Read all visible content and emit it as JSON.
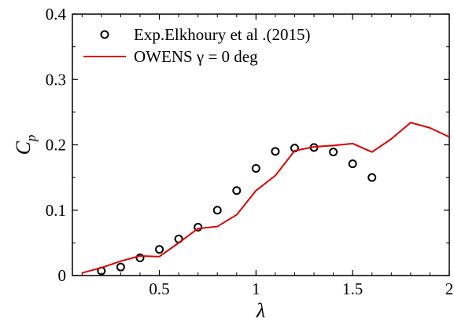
{
  "chart_data": {
    "type": "scatter",
    "xlabel": "λ",
    "ylabel": {
      "main": "C",
      "sub": "p"
    },
    "xlim": [
      0.05,
      2.0
    ],
    "ylim": [
      0,
      0.4
    ],
    "x_ticks": [
      {
        "value": 0.5,
        "label": "0.5"
      },
      {
        "value": 1.0,
        "label": "1"
      },
      {
        "value": 1.5,
        "label": "1.5"
      },
      {
        "value": 2.0,
        "label": "2"
      }
    ],
    "y_ticks": [
      {
        "value": 0,
        "label": "0"
      },
      {
        "value": 0.1,
        "label": "0.1"
      },
      {
        "value": 0.2,
        "label": "0.2"
      },
      {
        "value": 0.3,
        "label": "0.3"
      },
      {
        "value": 0.4,
        "label": "0.4"
      }
    ],
    "grid": false,
    "legend_position": "top-left",
    "series": [
      {
        "name": "Exp.Elkhoury et al .(2015)",
        "kind": "scatter",
        "marker": "open-circle",
        "color": "#000000",
        "x": [
          0.2,
          0.3,
          0.4,
          0.5,
          0.6,
          0.7,
          0.8,
          0.9,
          1.0,
          1.1,
          1.2,
          1.3,
          1.4,
          1.5,
          1.6
        ],
        "y": [
          0.007,
          0.013,
          0.027,
          0.04,
          0.056,
          0.074,
          0.1,
          0.13,
          0.164,
          0.19,
          0.195,
          0.196,
          0.189,
          0.171,
          0.15
        ]
      },
      {
        "name": "OWENS γ = 0 deg",
        "kind": "line",
        "color": "#dd0000",
        "x": [
          0.1,
          0.2,
          0.3,
          0.4,
          0.5,
          0.6,
          0.7,
          0.8,
          0.9,
          1.0,
          1.1,
          1.2,
          1.3,
          1.4,
          1.5,
          1.6,
          1.7,
          1.8,
          1.9,
          2.0
        ],
        "y": [
          0.004,
          0.012,
          0.022,
          0.03,
          0.029,
          0.05,
          0.072,
          0.075,
          0.093,
          0.13,
          0.153,
          0.191,
          0.197,
          0.199,
          0.202,
          0.189,
          0.209,
          0.234,
          0.226,
          0.212
        ]
      }
    ]
  }
}
